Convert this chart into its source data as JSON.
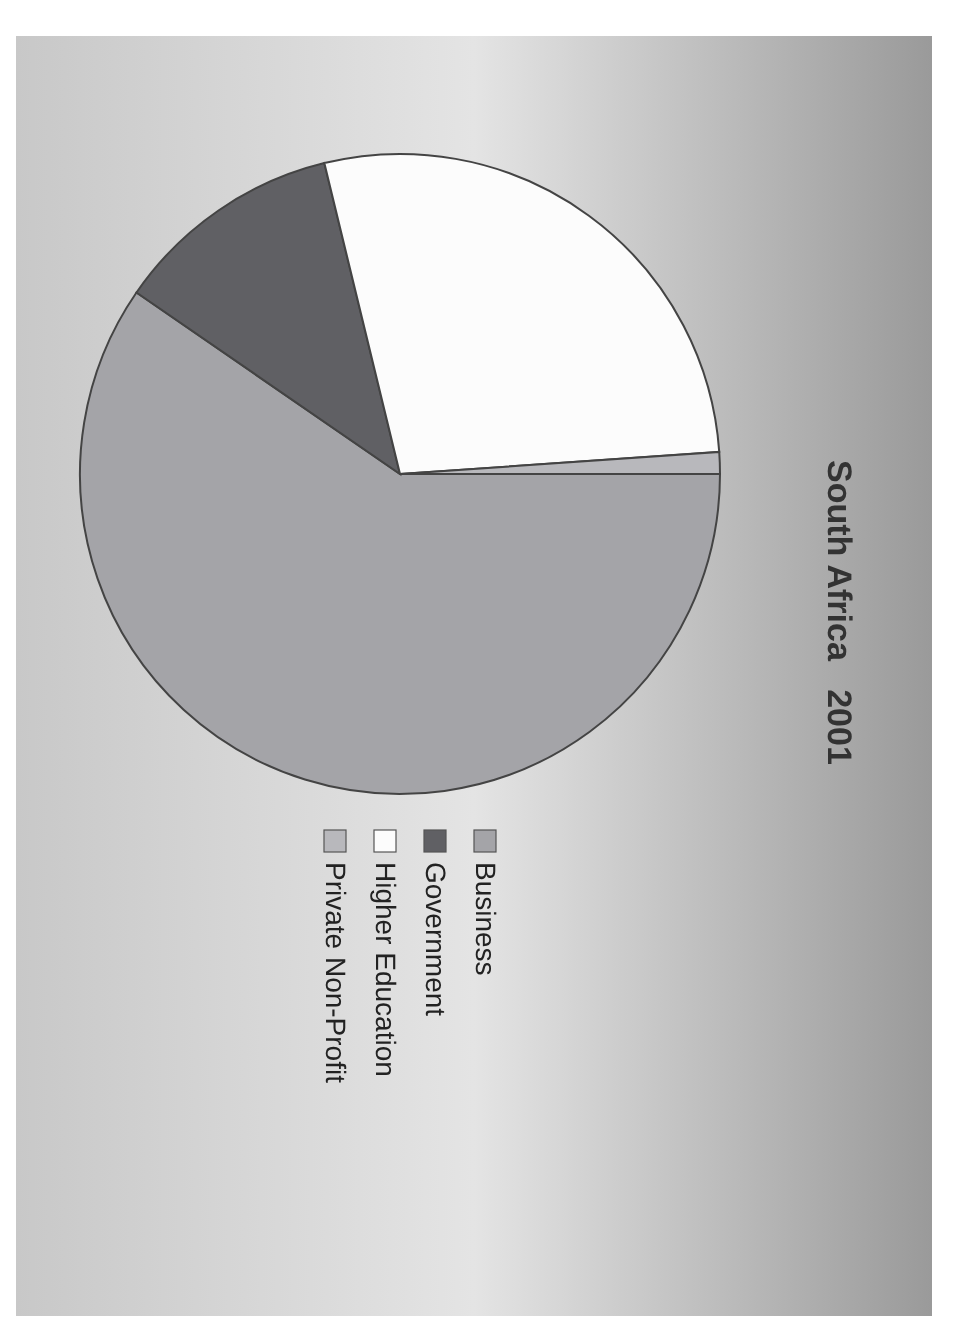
{
  "chart_data": {
    "type": "pie",
    "title": "South Africa   2001",
    "categories": [
      "Business",
      "Government",
      "Higher Education",
      "Private Non-Profit"
    ],
    "values": [
      59.6,
      11.6,
      27.7,
      1.1
    ],
    "colors": [
      "#a4a4a8",
      "#606064",
      "#fcfcfc",
      "#b8b8bc"
    ],
    "legend": "right"
  }
}
